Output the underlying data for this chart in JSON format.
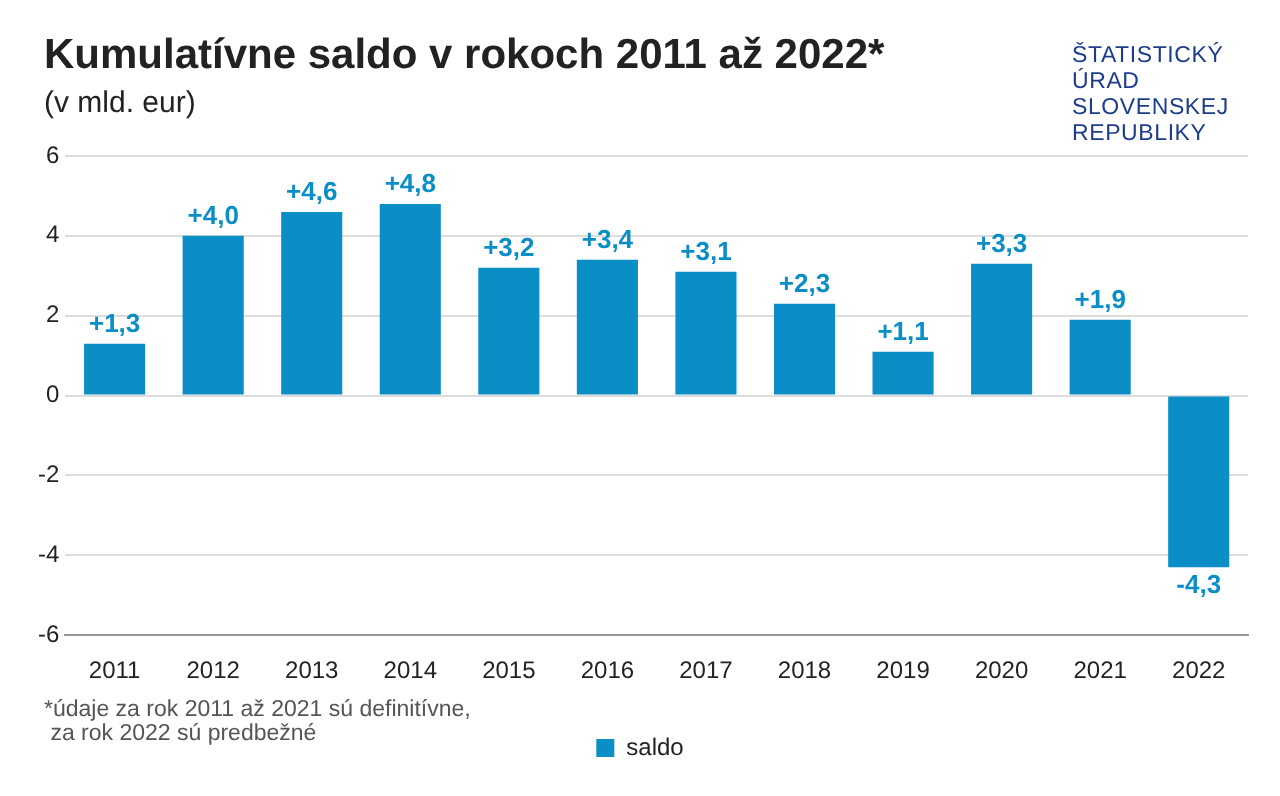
{
  "chart_data": {
    "type": "bar",
    "title": "Kumulatívne saldo v rokoch 2011 až 2022*",
    "subtitle": "(v mld. eur)",
    "annotations": [
      "*údaje za rok 2011 až 2021 sú definitívne,\n za rok 2022 sú predbežné",
      "ŠTATISTICKÝ ÚRAD SLOVENSKEJ REPUBLIKY"
    ],
    "categories": [
      "2011",
      "2012",
      "2013",
      "2014",
      "2015",
      "2016",
      "2017",
      "2018",
      "2019",
      "2020",
      "2021",
      "2022"
    ],
    "series": [
      {
        "name": "saldo",
        "color": "#0b8ec5",
        "values": [
          1.3,
          4.0,
          4.6,
          4.8,
          3.2,
          3.4,
          3.1,
          2.3,
          1.1,
          3.3,
          1.9,
          -4.3
        ],
        "value_labels": [
          "+1,3",
          "+4,0",
          "+4,6",
          "+4,8",
          "+3,2",
          "+3,4",
          "+3,1",
          "+2,3",
          "+1,1",
          "+3,3",
          "+1,9",
          "-4,3"
        ]
      }
    ],
    "ylim": [
      -6,
      6
    ],
    "yticks": [
      -6,
      -4,
      -2,
      0,
      2,
      4,
      6
    ],
    "grid": "y",
    "legend": "bottom"
  }
}
